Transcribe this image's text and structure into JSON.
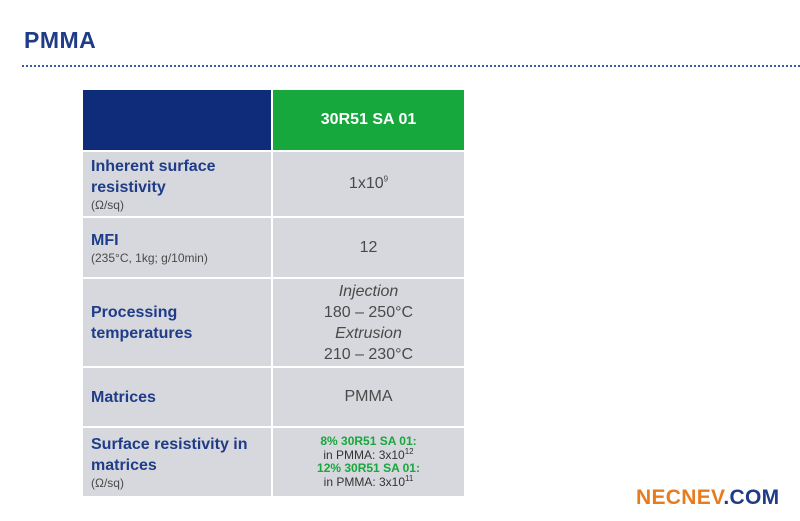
{
  "page": {
    "title": "PMMA"
  },
  "table": {
    "header": {
      "product": "30R51 SA 01"
    },
    "rows": {
      "inherent": {
        "label": "Inherent surface resistivity",
        "unit": "(Ω/sq)",
        "value_base": "1x10",
        "value_exp": "9"
      },
      "mfi": {
        "label": "MFI",
        "unit": "(235°C, 1kg; g/10min)",
        "value": "12"
      },
      "processing": {
        "label": "Processing temperatures",
        "injection_label": "Injection",
        "injection_range": "180 – 250°C",
        "extrusion_label": "Extrusion",
        "extrusion_range": "210 – 230°C"
      },
      "matrices": {
        "label": "Matrices",
        "value": "PMMA"
      },
      "surface": {
        "label": "Surface resistivity in matrices",
        "unit": "(Ω/sq)",
        "line1_green": "8% 30R51 SA 01:",
        "line1_value": "in PMMA: 3x10",
        "line1_exp": "12",
        "line2_green": "12% 30R51 SA 01:",
        "line2_value": "in PMMA: 3x10",
        "line2_exp": "11"
      }
    }
  },
  "logo": {
    "part1": "NECNEV",
    "part2": ".COM"
  },
  "colors": {
    "navy": "#0e2c7a",
    "green": "#16a73d",
    "cell_gray": "#d7d8dd",
    "logo_orange": "#e87b1e"
  }
}
